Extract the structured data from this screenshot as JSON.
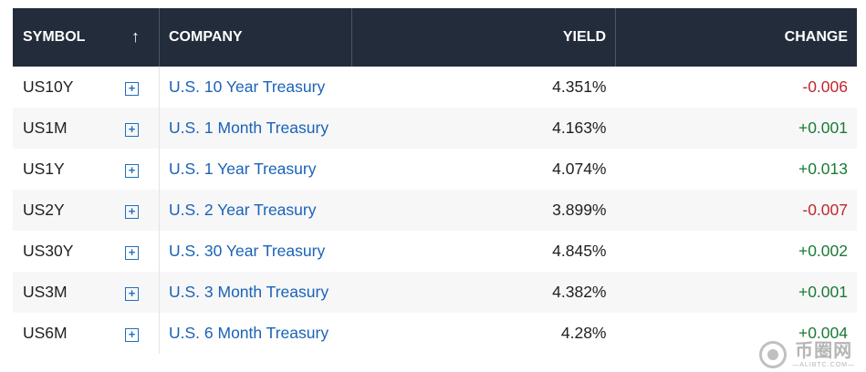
{
  "table": {
    "headers": {
      "symbol": "SYMBOL",
      "sort_arrow": "↑",
      "company": "COMPANY",
      "yield": "YIELD",
      "change": "CHANGE"
    },
    "add_icon": "+",
    "rows": [
      {
        "symbol": "US10Y",
        "company": "U.S. 10 Year Treasury",
        "yield": "4.351%",
        "change": "-0.006",
        "direction": "negative"
      },
      {
        "symbol": "US1M",
        "company": "U.S. 1 Month Treasury",
        "yield": "4.163%",
        "change": "+0.001",
        "direction": "positive"
      },
      {
        "symbol": "US1Y",
        "company": "U.S. 1 Year Treasury",
        "yield": "4.074%",
        "change": "+0.013",
        "direction": "positive"
      },
      {
        "symbol": "US2Y",
        "company": "U.S. 2 Year Treasury",
        "yield": "3.899%",
        "change": "-0.007",
        "direction": "negative"
      },
      {
        "symbol": "US30Y",
        "company": "U.S. 30 Year Treasury",
        "yield": "4.845%",
        "change": "+0.002",
        "direction": "positive"
      },
      {
        "symbol": "US3M",
        "company": "U.S. 3 Month Treasury",
        "yield": "4.382%",
        "change": "+0.001",
        "direction": "positive"
      },
      {
        "symbol": "US6M",
        "company": "U.S. 6 Month Treasury",
        "yield": "4.28%",
        "change": "+0.004",
        "direction": "positive"
      }
    ]
  },
  "colors": {
    "header_bg": "#232c3b",
    "link": "#1a62b6",
    "negative": "#c0272d",
    "positive": "#1a7a36"
  },
  "watermark": {
    "main": "币圈网",
    "sub": "—ALIBTC.COM—"
  }
}
